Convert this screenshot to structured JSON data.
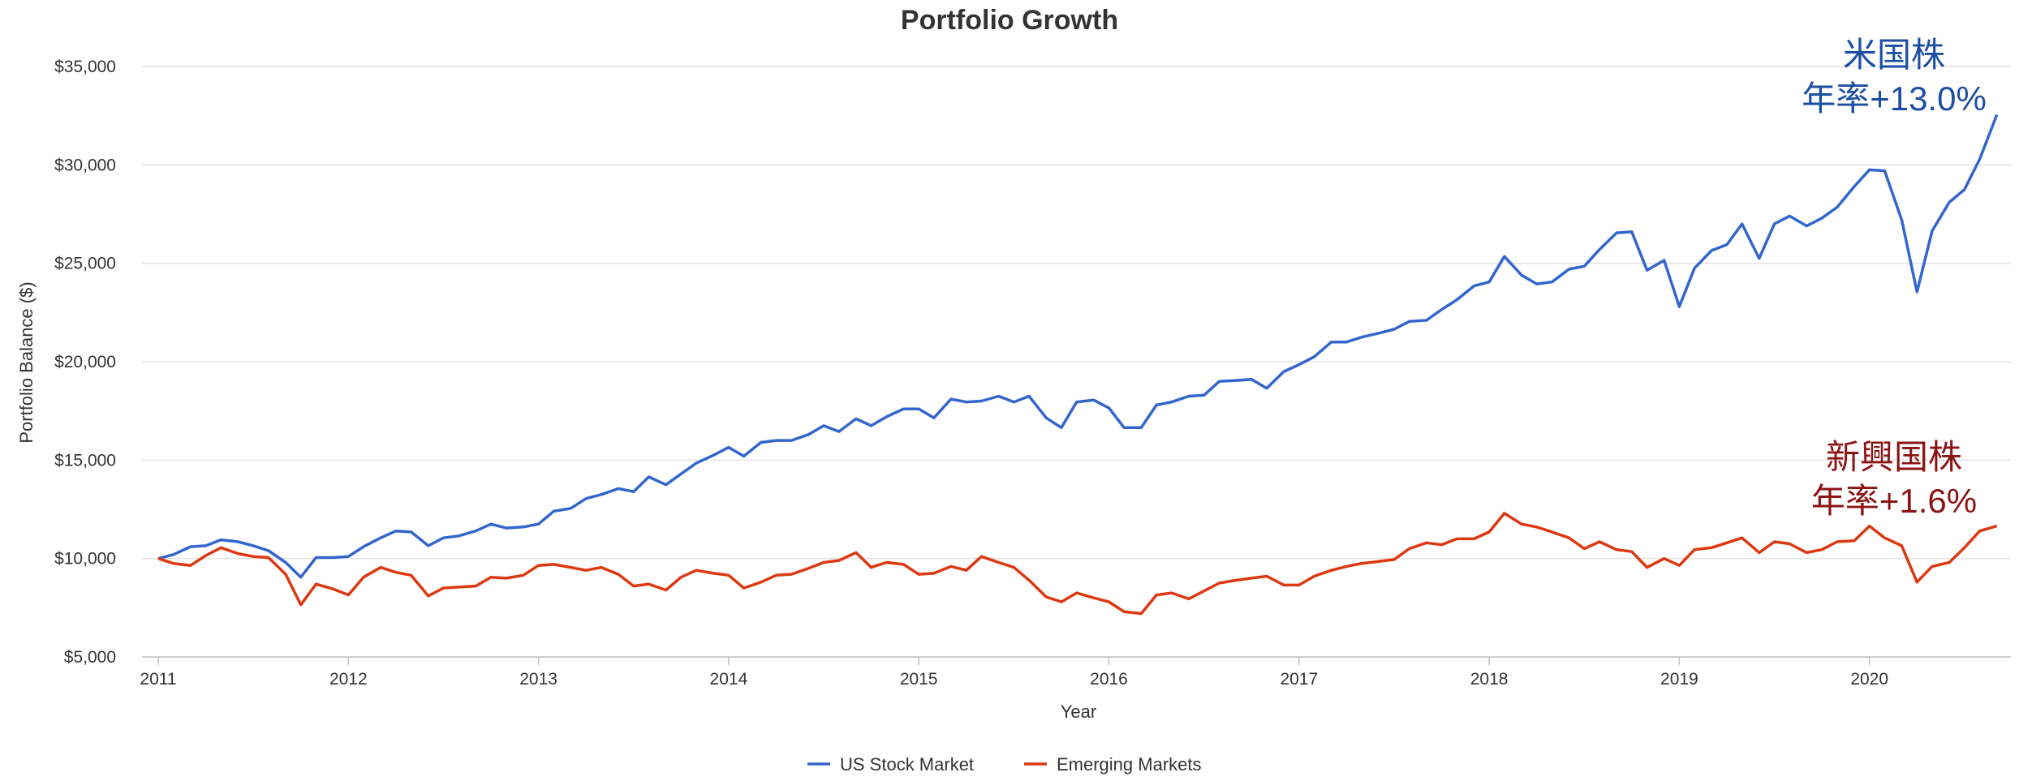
{
  "chart_data": {
    "type": "line",
    "title": "Portfolio Growth",
    "xlabel": "Year",
    "ylabel": "Portfolio Balance ($)",
    "xlim": [
      2011.0,
      2020.75
    ],
    "ylim": [
      5000,
      35000
    ],
    "grid": "horizontal",
    "legend_position": "bottom",
    "x_ticks": [
      2011,
      2012,
      2013,
      2014,
      2015,
      2016,
      2017,
      2018,
      2019,
      2020
    ],
    "x_tick_labels": [
      "2011",
      "2012",
      "2013",
      "2014",
      "2015",
      "2016",
      "2017",
      "2018",
      "2019",
      "2020"
    ],
    "y_ticks": [
      5000,
      10000,
      15000,
      20000,
      25000,
      30000,
      35000
    ],
    "y_tick_labels": [
      "$5,000",
      "$10,000",
      "$15,000",
      "$20,000",
      "$25,000",
      "$30,000",
      "$35,000"
    ],
    "series": [
      {
        "name": "US Stock Market",
        "color": "#3366cc",
        "points": [
          [
            2011.0,
            10000
          ],
          [
            2011.08,
            10200
          ],
          [
            2011.17,
            10600
          ],
          [
            2011.25,
            10650
          ],
          [
            2011.33,
            10950
          ],
          [
            2011.42,
            10850
          ],
          [
            2011.5,
            10650
          ],
          [
            2011.58,
            10400
          ],
          [
            2011.67,
            9800
          ],
          [
            2011.75,
            9050
          ],
          [
            2011.83,
            10050
          ],
          [
            2011.92,
            10050
          ],
          [
            2012.0,
            10100
          ],
          [
            2012.08,
            10600
          ],
          [
            2012.17,
            11050
          ],
          [
            2012.25,
            11400
          ],
          [
            2012.33,
            11350
          ],
          [
            2012.42,
            10650
          ],
          [
            2012.5,
            11050
          ],
          [
            2012.58,
            11150
          ],
          [
            2012.67,
            11400
          ],
          [
            2012.75,
            11750
          ],
          [
            2012.83,
            11550
          ],
          [
            2012.92,
            11600
          ],
          [
            2013.0,
            11750
          ],
          [
            2013.08,
            12400
          ],
          [
            2013.17,
            12550
          ],
          [
            2013.25,
            13050
          ],
          [
            2013.33,
            13250
          ],
          [
            2013.42,
            13550
          ],
          [
            2013.5,
            13400
          ],
          [
            2013.58,
            14150
          ],
          [
            2013.67,
            13750
          ],
          [
            2013.75,
            14300
          ],
          [
            2013.83,
            14850
          ],
          [
            2013.92,
            15250
          ],
          [
            2014.0,
            15650
          ],
          [
            2014.08,
            15200
          ],
          [
            2014.17,
            15900
          ],
          [
            2014.25,
            16000
          ],
          [
            2014.33,
            16000
          ],
          [
            2014.42,
            16300
          ],
          [
            2014.5,
            16750
          ],
          [
            2014.58,
            16450
          ],
          [
            2014.67,
            17100
          ],
          [
            2014.75,
            16750
          ],
          [
            2014.83,
            17200
          ],
          [
            2014.92,
            17600
          ],
          [
            2015.0,
            17600
          ],
          [
            2015.08,
            17150
          ],
          [
            2015.17,
            18100
          ],
          [
            2015.25,
            17950
          ],
          [
            2015.33,
            18000
          ],
          [
            2015.42,
            18250
          ],
          [
            2015.5,
            17950
          ],
          [
            2015.58,
            18250
          ],
          [
            2015.67,
            17150
          ],
          [
            2015.75,
            16650
          ],
          [
            2015.83,
            17950
          ],
          [
            2015.92,
            18050
          ],
          [
            2016.0,
            17650
          ],
          [
            2016.08,
            16650
          ],
          [
            2016.17,
            16650
          ],
          [
            2016.25,
            17800
          ],
          [
            2016.33,
            17950
          ],
          [
            2016.42,
            18250
          ],
          [
            2016.5,
            18300
          ],
          [
            2016.58,
            19000
          ],
          [
            2016.67,
            19050
          ],
          [
            2016.75,
            19100
          ],
          [
            2016.83,
            18650
          ],
          [
            2016.92,
            19500
          ],
          [
            2017.0,
            19850
          ],
          [
            2017.08,
            20250
          ],
          [
            2017.17,
            21000
          ],
          [
            2017.25,
            21000
          ],
          [
            2017.33,
            21250
          ],
          [
            2017.42,
            21450
          ],
          [
            2017.5,
            21650
          ],
          [
            2017.58,
            22050
          ],
          [
            2017.67,
            22100
          ],
          [
            2017.75,
            22650
          ],
          [
            2017.83,
            23150
          ],
          [
            2017.92,
            23850
          ],
          [
            2018.0,
            24050
          ],
          [
            2018.08,
            25350
          ],
          [
            2018.17,
            24400
          ],
          [
            2018.25,
            23950
          ],
          [
            2018.33,
            24050
          ],
          [
            2018.42,
            24700
          ],
          [
            2018.5,
            24850
          ],
          [
            2018.58,
            25700
          ],
          [
            2018.67,
            26550
          ],
          [
            2018.75,
            26600
          ],
          [
            2018.83,
            24650
          ],
          [
            2018.92,
            25150
          ],
          [
            2019.0,
            22800
          ],
          [
            2019.08,
            24750
          ],
          [
            2019.17,
            25650
          ],
          [
            2019.25,
            25950
          ],
          [
            2019.33,
            27000
          ],
          [
            2019.42,
            25250
          ],
          [
            2019.5,
            27000
          ],
          [
            2019.58,
            27400
          ],
          [
            2019.67,
            26900
          ],
          [
            2019.75,
            27300
          ],
          [
            2019.83,
            27850
          ],
          [
            2019.92,
            28900
          ],
          [
            2020.0,
            29750
          ],
          [
            2020.08,
            29700
          ],
          [
            2020.17,
            27200
          ],
          [
            2020.25,
            23550
          ],
          [
            2020.33,
            26650
          ],
          [
            2020.42,
            28100
          ],
          [
            2020.5,
            28750
          ],
          [
            2020.58,
            30300
          ],
          [
            2020.67,
            32550
          ]
        ]
      },
      {
        "name": "Emerging Markets",
        "color": "#dc3912",
        "points": [
          [
            2011.0,
            10000
          ],
          [
            2011.08,
            9750
          ],
          [
            2011.17,
            9650
          ],
          [
            2011.25,
            10150
          ],
          [
            2011.33,
            10550
          ],
          [
            2011.42,
            10250
          ],
          [
            2011.5,
            10100
          ],
          [
            2011.58,
            10050
          ],
          [
            2011.67,
            9200
          ],
          [
            2011.75,
            7650
          ],
          [
            2011.83,
            8700
          ],
          [
            2011.92,
            8450
          ],
          [
            2012.0,
            8150
          ],
          [
            2012.08,
            9050
          ],
          [
            2012.17,
            9550
          ],
          [
            2012.25,
            9300
          ],
          [
            2012.33,
            9150
          ],
          [
            2012.42,
            8100
          ],
          [
            2012.5,
            8500
          ],
          [
            2012.58,
            8550
          ],
          [
            2012.67,
            8600
          ],
          [
            2012.75,
            9050
          ],
          [
            2012.83,
            9000
          ],
          [
            2012.92,
            9150
          ],
          [
            2013.0,
            9650
          ],
          [
            2013.08,
            9700
          ],
          [
            2013.17,
            9550
          ],
          [
            2013.25,
            9400
          ],
          [
            2013.33,
            9550
          ],
          [
            2013.42,
            9200
          ],
          [
            2013.5,
            8600
          ],
          [
            2013.58,
            8700
          ],
          [
            2013.67,
            8400
          ],
          [
            2013.75,
            9050
          ],
          [
            2013.83,
            9400
          ],
          [
            2013.92,
            9250
          ],
          [
            2014.0,
            9150
          ],
          [
            2014.08,
            8500
          ],
          [
            2014.17,
            8800
          ],
          [
            2014.25,
            9150
          ],
          [
            2014.33,
            9200
          ],
          [
            2014.42,
            9500
          ],
          [
            2014.5,
            9800
          ],
          [
            2014.58,
            9900
          ],
          [
            2014.67,
            10300
          ],
          [
            2014.75,
            9550
          ],
          [
            2014.83,
            9800
          ],
          [
            2014.92,
            9700
          ],
          [
            2015.0,
            9200
          ],
          [
            2015.08,
            9250
          ],
          [
            2015.17,
            9600
          ],
          [
            2015.25,
            9400
          ],
          [
            2015.33,
            10100
          ],
          [
            2015.42,
            9800
          ],
          [
            2015.5,
            9550
          ],
          [
            2015.58,
            8900
          ],
          [
            2015.67,
            8050
          ],
          [
            2015.75,
            7800
          ],
          [
            2015.83,
            8250
          ],
          [
            2015.92,
            8000
          ],
          [
            2016.0,
            7800
          ],
          [
            2016.08,
            7300
          ],
          [
            2016.17,
            7200
          ],
          [
            2016.25,
            8150
          ],
          [
            2016.33,
            8250
          ],
          [
            2016.42,
            7950
          ],
          [
            2016.5,
            8350
          ],
          [
            2016.58,
            8750
          ],
          [
            2016.67,
            8900
          ],
          [
            2016.75,
            9000
          ],
          [
            2016.83,
            9100
          ],
          [
            2016.92,
            8650
          ],
          [
            2017.0,
            8650
          ],
          [
            2017.08,
            9100
          ],
          [
            2017.17,
            9400
          ],
          [
            2017.25,
            9600
          ],
          [
            2017.33,
            9750
          ],
          [
            2017.42,
            9850
          ],
          [
            2017.5,
            9950
          ],
          [
            2017.58,
            10500
          ],
          [
            2017.67,
            10800
          ],
          [
            2017.75,
            10700
          ],
          [
            2017.83,
            11000
          ],
          [
            2017.92,
            11000
          ],
          [
            2018.0,
            11350
          ],
          [
            2018.08,
            12300
          ],
          [
            2018.17,
            11750
          ],
          [
            2018.25,
            11600
          ],
          [
            2018.33,
            11350
          ],
          [
            2018.42,
            11050
          ],
          [
            2018.5,
            10500
          ],
          [
            2018.58,
            10850
          ],
          [
            2018.67,
            10450
          ],
          [
            2018.75,
            10350
          ],
          [
            2018.83,
            9550
          ],
          [
            2018.92,
            10000
          ],
          [
            2019.0,
            9650
          ],
          [
            2019.08,
            10450
          ],
          [
            2019.17,
            10550
          ],
          [
            2019.25,
            10800
          ],
          [
            2019.33,
            11050
          ],
          [
            2019.42,
            10300
          ],
          [
            2019.5,
            10850
          ],
          [
            2019.58,
            10750
          ],
          [
            2019.67,
            10300
          ],
          [
            2019.75,
            10450
          ],
          [
            2019.83,
            10850
          ],
          [
            2019.92,
            10900
          ],
          [
            2020.0,
            11650
          ],
          [
            2020.08,
            11050
          ],
          [
            2020.17,
            10650
          ],
          [
            2020.25,
            8800
          ],
          [
            2020.33,
            9600
          ],
          [
            2020.42,
            9800
          ],
          [
            2020.5,
            10550
          ],
          [
            2020.58,
            11400
          ],
          [
            2020.67,
            11650
          ]
        ]
      }
    ],
    "annotations": [
      {
        "lines": [
          "米国株",
          "年率+13.0%"
        ],
        "color": "#1c4fa3",
        "series": "US Stock Market"
      },
      {
        "lines": [
          "新興国株",
          "年率+1.6%"
        ],
        "color": "#8b1414",
        "series": "Emerging Markets"
      }
    ]
  }
}
